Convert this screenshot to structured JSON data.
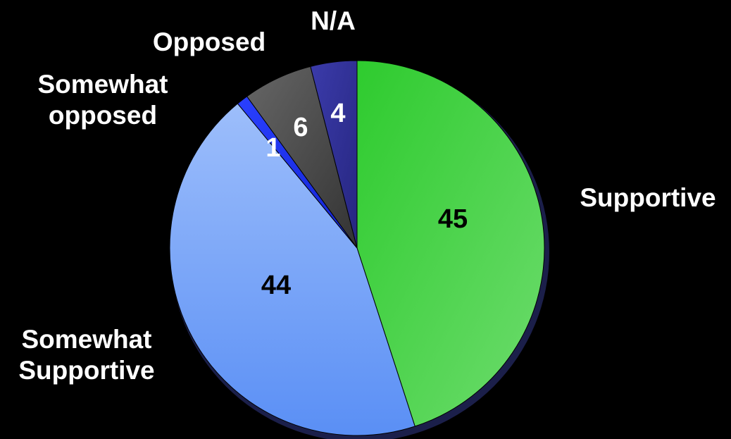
{
  "chart_data": {
    "type": "pie",
    "start_angle": "12 o'clock",
    "direction": "clockwise",
    "slices": [
      {
        "name": "Supportive",
        "value": 45,
        "label": "45",
        "color": "#3ECC3E",
        "label_color": "#000000"
      },
      {
        "name": "Somewhat Supportive",
        "value": 44,
        "label": "44",
        "color": "#6A9CF5",
        "label_color": "#000000"
      },
      {
        "name": "Somewhat opposed",
        "value": 1,
        "label": "1",
        "color": "#1A2EF0",
        "label_color": "#ffffff"
      },
      {
        "name": "Opposed",
        "value": 6,
        "label": "6",
        "color": "#555555",
        "label_color": "#ffffff"
      },
      {
        "name": "N/A",
        "value": 4,
        "label": "4",
        "color": "#33339A",
        "label_color": "#ffffff"
      }
    ],
    "legend": "none",
    "category_labels": [
      {
        "lines": [
          "Supportive"
        ]
      },
      {
        "lines": [
          "Somewhat",
          "Supportive"
        ]
      },
      {
        "lines": [
          "Somewhat",
          "opposed"
        ]
      },
      {
        "lines": [
          "Opposed"
        ]
      },
      {
        "lines": [
          "N/A"
        ]
      }
    ]
  }
}
